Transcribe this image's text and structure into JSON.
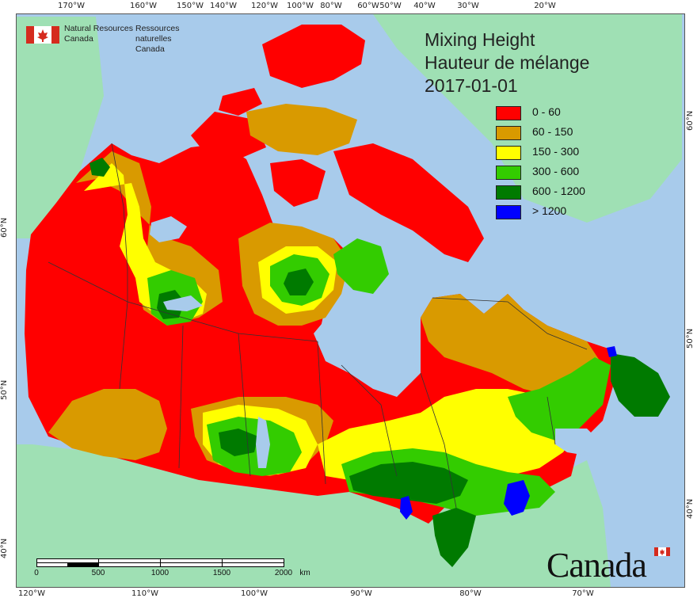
{
  "agency": {
    "name_en_line1": "Natural Resources",
    "name_en_line2": "Canada",
    "name_fr_line1": "Ressources naturelles",
    "name_fr_line2": "Canada"
  },
  "title": {
    "en": "Mixing Height",
    "fr": "Hauteur de mélange",
    "date": "2017-01-01"
  },
  "legend": [
    {
      "label": "0 - 60",
      "color": "#ff0000"
    },
    {
      "label": "60 - 150",
      "color": "#d99a00"
    },
    {
      "label": "150 - 300",
      "color": "#ffff00"
    },
    {
      "label": "300 - 600",
      "color": "#33cc00"
    },
    {
      "label": "600 - 1200",
      "color": "#007a00"
    },
    {
      "label": "> 1200",
      "color": "#0000ff"
    }
  ],
  "graticule": {
    "top": [
      "170°W",
      "160°W",
      "150°W",
      "140°W",
      "120°W",
      "100°W",
      "80°W",
      "60°W",
      "50°W",
      "40°W",
      "30°W",
      "20°W"
    ],
    "bottom": [
      "120°W",
      "110°W",
      "100°W",
      "90°W",
      "80°W",
      "70°W"
    ],
    "left": [
      "60°N",
      "50°N",
      "40°N"
    ],
    "right": [
      "60°N",
      "50°N",
      "40°N"
    ]
  },
  "scalebar": {
    "labels": [
      "0",
      "500",
      "1000",
      "1500",
      "2000"
    ],
    "unit": "km"
  },
  "wordmark": "Canada",
  "colors": {
    "ocean": "#a8cbeb",
    "foreign_land": "#9fe0b4",
    "boundary": "#333333"
  }
}
